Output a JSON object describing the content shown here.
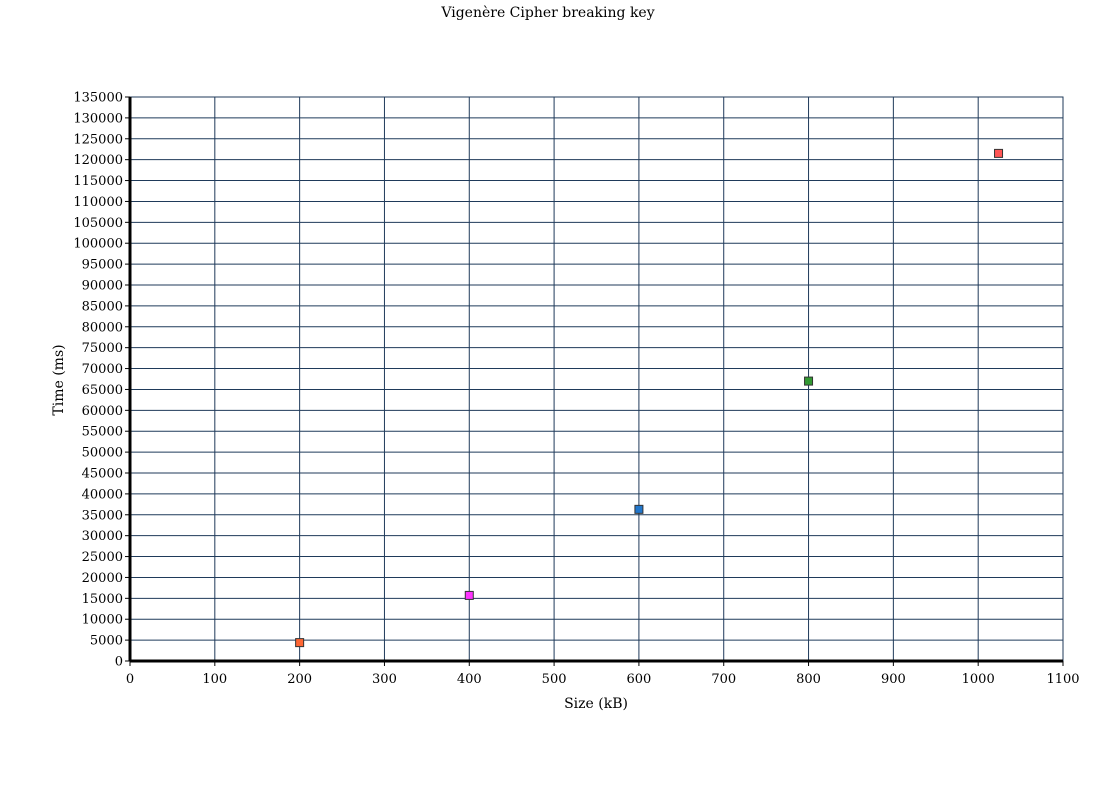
{
  "chart_data": {
    "type": "scatter",
    "title": "Vigenère Cipher breaking key",
    "xlabel": "Size (kB)",
    "ylabel": "Time (ms)",
    "xlim": [
      0,
      1100
    ],
    "ylim": [
      0,
      135000
    ],
    "x_ticks": [
      0,
      100,
      200,
      300,
      400,
      500,
      600,
      700,
      800,
      900,
      1000,
      1100
    ],
    "y_ticks": [
      0,
      5000,
      10000,
      15000,
      20000,
      25000,
      30000,
      35000,
      40000,
      45000,
      50000,
      55000,
      60000,
      65000,
      70000,
      75000,
      80000,
      85000,
      90000,
      95000,
      100000,
      105000,
      110000,
      115000,
      120000,
      125000,
      130000,
      135000
    ],
    "grid": true,
    "points": [
      {
        "x": 200,
        "y": 4400,
        "color": "#ff6633"
      },
      {
        "x": 400,
        "y": 15700,
        "color": "#ff33ff"
      },
      {
        "x": 600,
        "y": 36300,
        "color": "#2277cc"
      },
      {
        "x": 800,
        "y": 67000,
        "color": "#339933"
      },
      {
        "x": 1024,
        "y": 121500,
        "color": "#ff5555"
      }
    ]
  }
}
